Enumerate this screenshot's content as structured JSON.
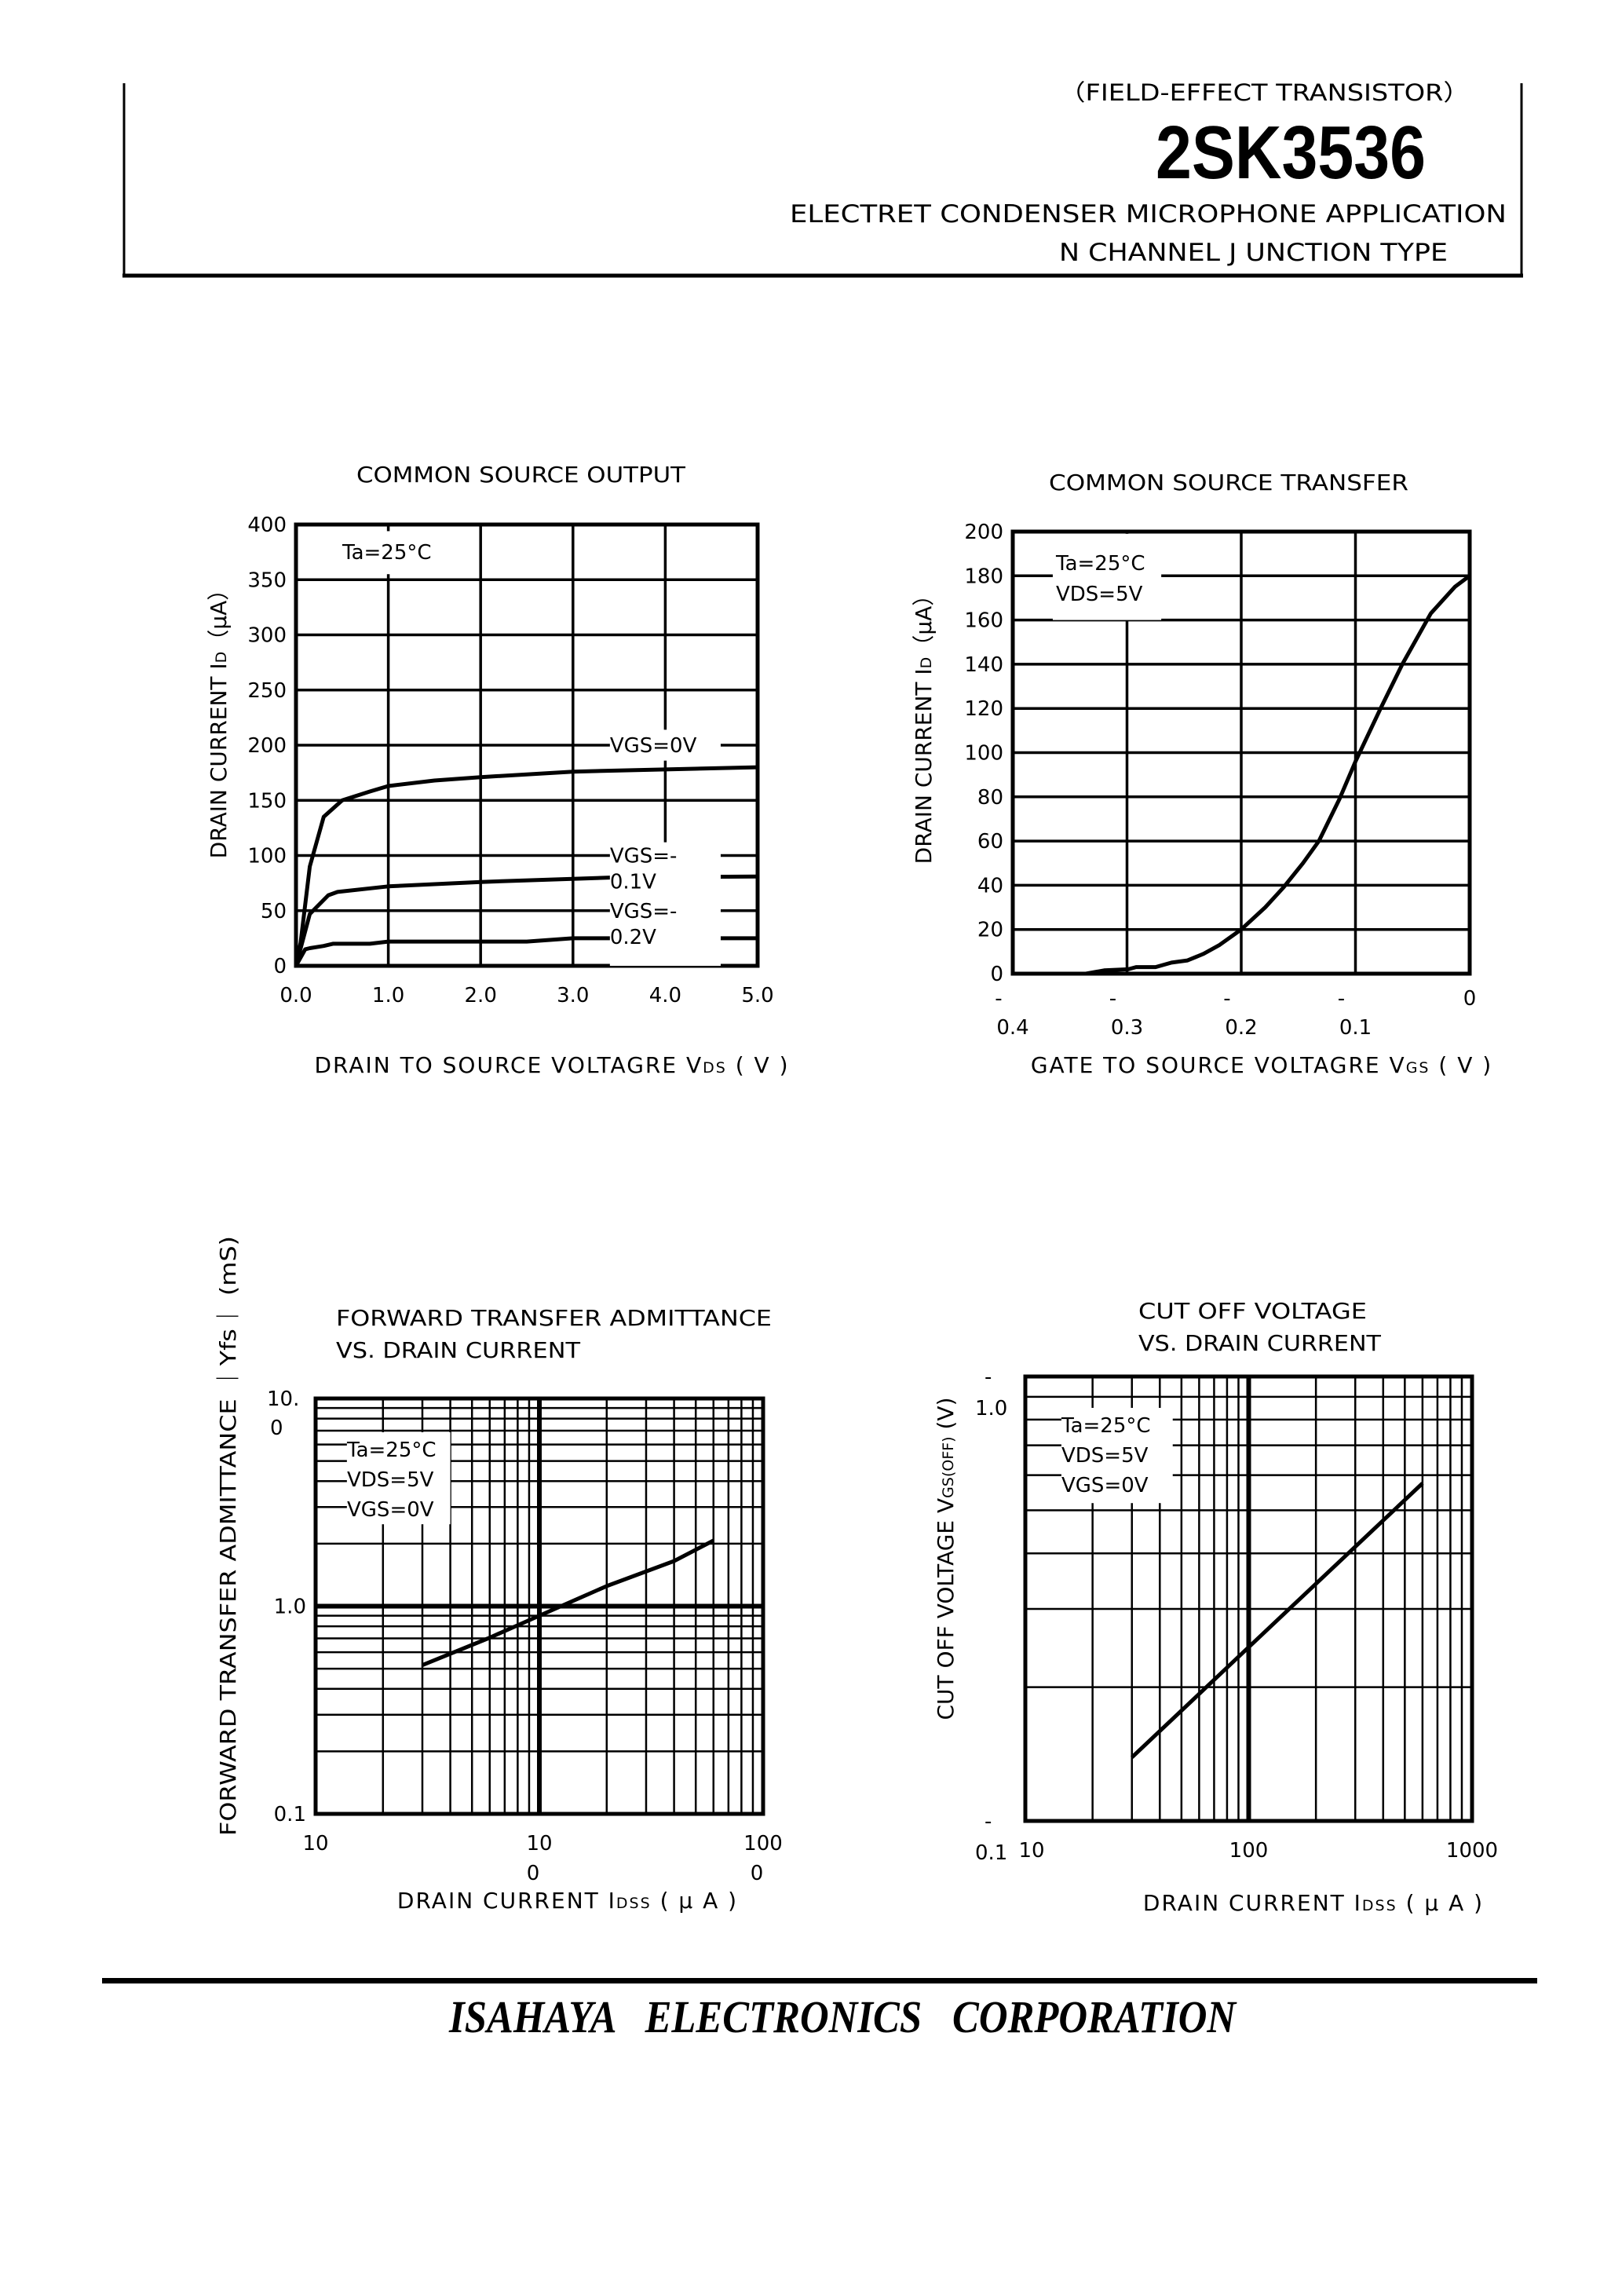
{
  "header": {
    "category": "（FIELD-EFFECT TRANSISTOR）",
    "part_number": "2SK3536",
    "application": "ELECTRET CONDENSER MICROPHONE APPLICATION",
    "type": "N CHANNEL J UNCTION TYPE"
  },
  "footer": {
    "company": "ISAHAYA ELECTRONICS CORPORATION"
  },
  "colors": {
    "ink": "#000000",
    "paper": "#ffffff"
  },
  "chart_data": [
    {
      "type": "line",
      "title": "COMMON SOURCE OUTPUT",
      "xlabel": {
        "main": "DRAIN TO SOURCE VOLTAGRE V",
        "sub": "DS",
        "unit": " ( V )"
      },
      "ylabel": {
        "main": "DRAIN CURRENT  I",
        "sub": "D",
        "unit": "（μA）"
      },
      "xscale": "linear",
      "yscale": "linear",
      "xlim": [
        0,
        5
      ],
      "ylim": [
        0,
        400
      ],
      "xticks": [
        0,
        1,
        2,
        3,
        4,
        5
      ],
      "xtick_labels": [
        "0.0",
        "1.0",
        "2.0",
        "3.0",
        "4.0",
        "5.0"
      ],
      "yticks": [
        0,
        50,
        100,
        150,
        200,
        250,
        300,
        350,
        400
      ],
      "ytick_labels": [
        "0",
        "50",
        "100",
        "150",
        "200",
        "250",
        "300",
        "350",
        "400"
      ],
      "grid": true,
      "annotations": [
        "Ta=25°C"
      ],
      "series": [
        {
          "name": "VGS=0V",
          "x": [
            0,
            0.05,
            0.15,
            0.3,
            0.5,
            0.8,
            1.0,
            1.5,
            2.0,
            3.0,
            4.0,
            5.0
          ],
          "y": [
            0,
            21,
            90,
            135,
            150,
            158,
            163,
            168,
            171,
            176,
            178,
            180
          ]
        },
        {
          "name": "VGS=-0.1V",
          "x": [
            0,
            0.15,
            0.35,
            0.45,
            1.0,
            2.0,
            3.4,
            5.0
          ],
          "y": [
            0,
            47,
            64,
            67,
            72,
            76,
            80,
            81
          ]
        },
        {
          "name": "VGS=-0.2V",
          "x": [
            0,
            0.1,
            0.15,
            0.3,
            0.4,
            0.8,
            1.0,
            2.5,
            3.0,
            5.0
          ],
          "y": [
            0,
            15,
            16,
            18,
            20,
            20,
            22,
            22,
            25,
            25
          ]
        }
      ]
    },
    {
      "type": "line",
      "title": "COMMON SOURCE TRANSFER",
      "xlabel": {
        "main": "GATE TO SOURCE VOLTAGRE V",
        "sub": "GS",
        "unit": " ( V )"
      },
      "ylabel": {
        "main": "DRAIN CURRENT  I",
        "sub": "D",
        "unit": "（μA）"
      },
      "xscale": "linear",
      "yscale": "linear",
      "xlim": [
        -0.4,
        0
      ],
      "ylim": [
        0,
        200
      ],
      "xticks": [
        -0.4,
        -0.3,
        -0.2,
        -0.1,
        0
      ],
      "xtick_labels": [
        "-0.4",
        "-0.3",
        "-0.2",
        "-0.1",
        "0"
      ],
      "yticks": [
        0,
        20,
        40,
        60,
        80,
        100,
        120,
        140,
        160,
        180,
        200
      ],
      "ytick_labels": [
        "0",
        "20",
        "40",
        "60",
        "80",
        "100",
        "120",
        "140",
        "160",
        "180",
        "200"
      ],
      "grid": true,
      "annotations": [
        "Ta=25°C",
        "VDS=5V"
      ],
      "series": [
        {
          "x": [
            -0.4,
            -0.336,
            -0.32,
            -0.299,
            -0.292,
            -0.275,
            -0.261,
            -0.247,
            -0.233,
            -0.219,
            -0.2,
            -0.179,
            -0.163,
            -0.146,
            -0.132,
            -0.114,
            -0.1,
            -0.078,
            -0.059,
            -0.034,
            -0.013,
            0
          ],
          "y": [
            0,
            0,
            1.5,
            2,
            3,
            3,
            5,
            6,
            9,
            13,
            20,
            30,
            39,
            50,
            60,
            79,
            96,
            120,
            140,
            163,
            175,
            180
          ]
        }
      ]
    },
    {
      "type": "line",
      "title": [
        "FORWARD  TRANSFER ADMITTANCE",
        "VS. DRAIN CURRENT"
      ],
      "xlabel": {
        "main": "DRAIN CURRENT  I",
        "sub": "DSS",
        "unit": " ( μ A )"
      },
      "ylabel": "FORWARD TRANSFER ADMITTANCE  ｜Yfs｜  (mS)",
      "xscale": "log",
      "yscale": "log",
      "xlim": [
        10,
        1000
      ],
      "ylim": [
        0.1,
        10
      ],
      "xticks": [
        10,
        100,
        1000
      ],
      "xtick_labels": [
        "10",
        "100",
        "1000"
      ],
      "yticks": [
        0.1,
        1,
        10
      ],
      "ytick_labels": [
        "0.1",
        "1.0",
        "10.0"
      ],
      "grid": true,
      "annotations": [
        "Ta=25°C",
        "VDS=5V",
        "VGS=0V"
      ],
      "series": [
        {
          "x": [
            30,
            59,
            100,
            200,
            400,
            600
          ],
          "y": [
            0.52,
            0.7,
            0.9,
            1.25,
            1.65,
            2.07
          ]
        }
      ]
    },
    {
      "type": "line",
      "title": [
        "CUT OFF VOLTAGE",
        "VS. DRAIN CURRENT"
      ],
      "xlabel": {
        "main": "DRAIN CURRENT  I",
        "sub": "DSS",
        "unit": " ( μ A )"
      },
      "ylabel": {
        "main": "CUT OFF VOLTAGE  V",
        "sub": "GS(OFF)",
        "unit": "  (V)"
      },
      "xscale": "log",
      "yscale": "log",
      "xlim": [
        10,
        1000
      ],
      "ylim": [
        0.1,
        1.0
      ],
      "xticks": [
        10,
        100,
        1000
      ],
      "xtick_labels": [
        "10",
        "100",
        "1000"
      ],
      "yticks": [
        0.1,
        1.0
      ],
      "ytick_labels": [
        "-0.1",
        "-1.0"
      ],
      "grid": true,
      "annotations": [
        "Ta=25°C",
        "VDS=5V",
        "VGS=0V"
      ],
      "series": [
        {
          "x": [
            30,
            100,
            600
          ],
          "y": [
            0.139,
            0.246,
            0.575
          ]
        }
      ]
    }
  ]
}
